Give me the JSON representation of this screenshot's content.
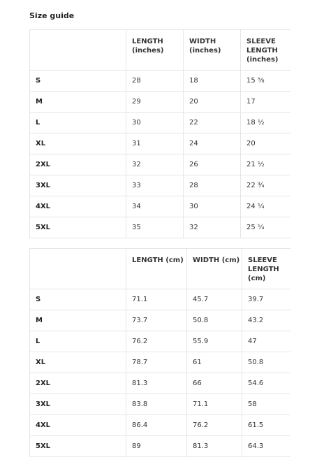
{
  "title": "Size guide",
  "tables": [
    {
      "headers": [
        "",
        "LENGTH (inches)",
        "WIDTH (inches)",
        "SLEEVE LENGTH (inches)"
      ],
      "rows": [
        [
          "S",
          "28",
          "18",
          "15 ⅝"
        ],
        [
          "M",
          "29",
          "20",
          "17"
        ],
        [
          "L",
          "30",
          "22",
          "18 ½"
        ],
        [
          "XL",
          "31",
          "24",
          "20"
        ],
        [
          "2XL",
          "32",
          "26",
          "21 ½"
        ],
        [
          "3XL",
          "33",
          "28",
          "22 ¾"
        ],
        [
          "4XL",
          "34",
          "30",
          "24 ¼"
        ],
        [
          "5XL",
          "35",
          "32",
          "25 ¼"
        ]
      ]
    },
    {
      "headers": [
        "",
        "LENGTH (cm)",
        "WIDTH (cm)",
        "SLEEVE LENGTH (cm)"
      ],
      "rows": [
        [
          "S",
          "71.1",
          "45.7",
          "39.7"
        ],
        [
          "M",
          "73.7",
          "50.8",
          "43.2"
        ],
        [
          "L",
          "76.2",
          "55.9",
          "47"
        ],
        [
          "XL",
          "78.7",
          "61",
          "50.8"
        ],
        [
          "2XL",
          "81.3",
          "66",
          "54.6"
        ],
        [
          "3XL",
          "83.8",
          "71.1",
          "58"
        ],
        [
          "4XL",
          "86.4",
          "76.2",
          "61.5"
        ],
        [
          "5XL",
          "89",
          "81.3",
          "64.3"
        ]
      ]
    }
  ]
}
